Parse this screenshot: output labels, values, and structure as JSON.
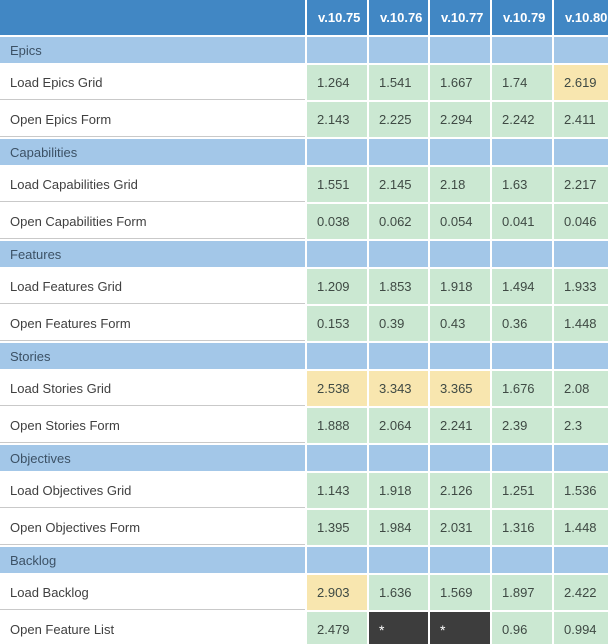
{
  "colors": {
    "header_blue": "#4187c4",
    "section_blue": "#a3c7e8",
    "green": "#cbe8d2",
    "yellow": "#f8e6af",
    "dark": "#3d3d3d",
    "label_text": "#404040",
    "value_text": "#3f4a44",
    "section_text": "#3c5165",
    "divider_gray": "#c9c9c9"
  },
  "chart_data": {
    "type": "table",
    "corner_label": "",
    "columns": [
      "v.10.75",
      "v.10.76",
      "v.10.77",
      "v.10.79",
      "v.10.80"
    ],
    "legend_note": "normal = green cell, slow = yellow highlighted cell, missing = dark cell with asterisk",
    "sections": [
      {
        "name": "Epics",
        "rows": [
          {
            "label": "Load Epics Grid",
            "values": [
              {
                "value": "1.264",
                "type": "normal"
              },
              {
                "value": "1.541",
                "type": "normal"
              },
              {
                "value": "1.667",
                "type": "normal"
              },
              {
                "value": "1.74",
                "type": "normal"
              },
              {
                "value": "2.619",
                "type": "slow"
              }
            ]
          },
          {
            "label": "Open Epics Form",
            "values": [
              {
                "value": "2.143",
                "type": "normal"
              },
              {
                "value": "2.225",
                "type": "normal"
              },
              {
                "value": "2.294",
                "type": "normal"
              },
              {
                "value": "2.242",
                "type": "normal"
              },
              {
                "value": "2.411",
                "type": "normal"
              }
            ]
          }
        ]
      },
      {
        "name": "Capabilities",
        "rows": [
          {
            "label": "Load Capabilities Grid",
            "values": [
              {
                "value": "1.551",
                "type": "normal"
              },
              {
                "value": "2.145",
                "type": "normal"
              },
              {
                "value": "2.18",
                "type": "normal"
              },
              {
                "value": "1.63",
                "type": "normal"
              },
              {
                "value": "2.217",
                "type": "normal"
              }
            ]
          },
          {
            "label": "Open Capabilities Form",
            "values": [
              {
                "value": "0.038",
                "type": "normal"
              },
              {
                "value": "0.062",
                "type": "normal"
              },
              {
                "value": "0.054",
                "type": "normal"
              },
              {
                "value": "0.041",
                "type": "normal"
              },
              {
                "value": "0.046",
                "type": "normal"
              }
            ]
          }
        ]
      },
      {
        "name": "Features",
        "rows": [
          {
            "label": "Load Features Grid",
            "values": [
              {
                "value": "1.209",
                "type": "normal"
              },
              {
                "value": "1.853",
                "type": "normal"
              },
              {
                "value": "1.918",
                "type": "normal"
              },
              {
                "value": "1.494",
                "type": "normal"
              },
              {
                "value": "1.933",
                "type": "normal"
              }
            ]
          },
          {
            "label": "Open Features Form",
            "values": [
              {
                "value": "0.153",
                "type": "normal"
              },
              {
                "value": "0.39",
                "type": "normal"
              },
              {
                "value": "0.43",
                "type": "normal"
              },
              {
                "value": "0.36",
                "type": "normal"
              },
              {
                "value": "1.448",
                "type": "normal"
              }
            ]
          }
        ]
      },
      {
        "name": "Stories",
        "rows": [
          {
            "label": "Load Stories Grid",
            "values": [
              {
                "value": "2.538",
                "type": "slow"
              },
              {
                "value": "3.343",
                "type": "slow"
              },
              {
                "value": "3.365",
                "type": "slow"
              },
              {
                "value": "1.676",
                "type": "normal"
              },
              {
                "value": "2.08",
                "type": "normal"
              }
            ]
          },
          {
            "label": "Open Stories Form",
            "values": [
              {
                "value": "1.888",
                "type": "normal"
              },
              {
                "value": "2.064",
                "type": "normal"
              },
              {
                "value": "2.241",
                "type": "normal"
              },
              {
                "value": "2.39",
                "type": "normal"
              },
              {
                "value": "2.3",
                "type": "normal"
              }
            ]
          }
        ]
      },
      {
        "name": "Objectives",
        "rows": [
          {
            "label": "Load Objectives Grid",
            "values": [
              {
                "value": "1.143",
                "type": "normal"
              },
              {
                "value": "1.918",
                "type": "normal"
              },
              {
                "value": "2.126",
                "type": "normal"
              },
              {
                "value": "1.251",
                "type": "normal"
              },
              {
                "value": "1.536",
                "type": "normal"
              }
            ]
          },
          {
            "label": "Open Objectives Form",
            "values": [
              {
                "value": "1.395",
                "type": "normal"
              },
              {
                "value": "1.984",
                "type": "normal"
              },
              {
                "value": "2.031",
                "type": "normal"
              },
              {
                "value": "1.316",
                "type": "normal"
              },
              {
                "value": "1.448",
                "type": "normal"
              }
            ]
          }
        ]
      },
      {
        "name": "Backlog",
        "rows": [
          {
            "label": "Load Backlog",
            "values": [
              {
                "value": "2.903",
                "type": "slow"
              },
              {
                "value": "1.636",
                "type": "normal"
              },
              {
                "value": "1.569",
                "type": "normal"
              },
              {
                "value": "1.897",
                "type": "normal"
              },
              {
                "value": "2.422",
                "type": "normal"
              }
            ]
          },
          {
            "label": "Open Feature List",
            "values": [
              {
                "value": "2.479",
                "type": "normal"
              },
              {
                "value": "*",
                "type": "missing"
              },
              {
                "value": "*",
                "type": "missing"
              },
              {
                "value": "0.96",
                "type": "normal"
              },
              {
                "value": "0.994",
                "type": "normal"
              }
            ]
          }
        ]
      }
    ]
  }
}
